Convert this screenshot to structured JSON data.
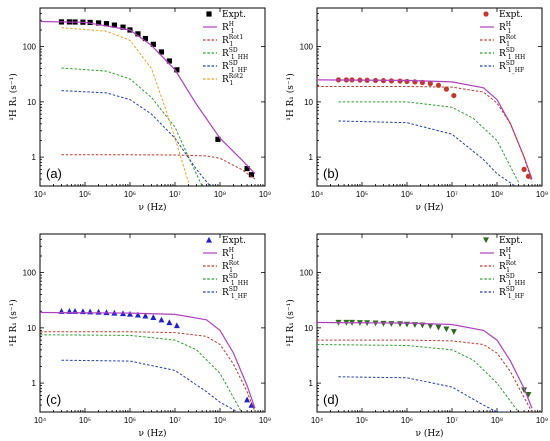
{
  "figure": {
    "panels": [
      "(a)",
      "(b)",
      "(c)",
      "(d)"
    ]
  },
  "chart_data": [
    {
      "type": "line",
      "panel_label": "(a)",
      "xlabel": "ν (Hz)",
      "ylabel": "¹H R₁ (s⁻¹)",
      "x_scale": "log",
      "y_scale": "log",
      "xlim": [
        10000,
        1000000000
      ],
      "ylim": [
        0.3,
        500
      ],
      "x_ticks": [
        "10⁴",
        "10⁵",
        "10⁶",
        "10⁷",
        "10⁸",
        "10⁹"
      ],
      "y_ticks": [
        "1",
        "10",
        "100"
      ],
      "legend_position": "top-right",
      "legend": [
        "Expt.",
        "R1H",
        "R1Rot1",
        "R1SD_HH",
        "R1SD_HF",
        "R1Rot2"
      ],
      "series": [
        {
          "name": "Expt.",
          "kind": "marker",
          "marker": "square",
          "color": "#000000",
          "x": [
            30000,
            45000,
            60000,
            90000,
            130000,
            200000,
            300000,
            450000,
            700000,
            1000000,
            1500000,
            2200000,
            3300000,
            5000000,
            7500000,
            11000000,
            90000000,
            400000000,
            500000000
          ],
          "y": [
            280,
            280,
            279,
            277,
            274,
            268,
            260,
            245,
            225,
            200,
            170,
            140,
            110,
            80,
            55,
            38,
            2.1,
            0.62,
            0.48
          ]
        },
        {
          "name": "R1H",
          "color": "#b040c0",
          "style": "solid",
          "x": [
            10000,
            100000,
            1000000,
            3000000,
            10000000,
            30000000,
            100000000,
            300000000,
            600000000
          ],
          "y": [
            285,
            275,
            200,
            105,
            38,
            9,
            2.2,
            0.9,
            0.5
          ]
        },
        {
          "name": "R1Rot1",
          "color": "#c0392b",
          "style": "dotted",
          "x": [
            30000,
            1000000,
            10000000,
            50000000,
            100000000,
            300000000,
            600000000
          ],
          "y": [
            1.1,
            1.1,
            1.09,
            1.05,
            0.95,
            0.6,
            0.4
          ]
        },
        {
          "name": "R1SD_HH",
          "color": "#2ca02c",
          "style": "dotted",
          "x": [
            30000,
            300000,
            1000000,
            3000000,
            10000000,
            20000000,
            40000000
          ],
          "y": [
            41,
            36,
            26,
            12,
            3.5,
            1.0,
            0.3
          ]
        },
        {
          "name": "R1SD_HF",
          "color": "#1f3fb0",
          "style": "dotted",
          "x": [
            30000,
            300000,
            1000000,
            3000000,
            10000000,
            30000000,
            60000000
          ],
          "y": [
            16,
            14.5,
            11,
            6,
            2.2,
            0.6,
            0.3
          ]
        },
        {
          "name": "R1Rot2",
          "color": "#e8a020",
          "style": "dotted",
          "x": [
            30000,
            300000,
            1000000,
            3000000,
            6000000,
            10000000,
            20000000
          ],
          "y": [
            220,
            190,
            130,
            40,
            8,
            2.2,
            0.35
          ]
        }
      ]
    },
    {
      "type": "line",
      "panel_label": "(b)",
      "xlabel": "ν (Hz)",
      "ylabel": "¹H R₁ (s⁻¹)",
      "x_scale": "log",
      "y_scale": "log",
      "xlim": [
        10000,
        1000000000
      ],
      "ylim": [
        0.3,
        500
      ],
      "x_ticks": [
        "10⁴",
        "10⁵",
        "10⁶",
        "10⁷",
        "10⁸",
        "10⁹"
      ],
      "y_ticks": [
        "1",
        "10",
        "100"
      ],
      "legend_position": "top-right",
      "legend": [
        "Expt.",
        "R1H",
        "R1Rot",
        "R1SD_HH",
        "R1SD_HF"
      ],
      "series": [
        {
          "name": "Expt.",
          "kind": "marker",
          "marker": "circle",
          "color": "#c0392b",
          "x": [
            30000,
            45000,
            60000,
            90000,
            130000,
            200000,
            300000,
            450000,
            700000,
            1000000,
            1500000,
            2200000,
            3300000,
            5000000,
            7500000,
            11000000,
            400000000,
            500000000
          ],
          "y": [
            25,
            25,
            25,
            24.8,
            24.6,
            24.4,
            24.2,
            24,
            23.8,
            23.4,
            23,
            22.4,
            21.5,
            20,
            17,
            13,
            0.6,
            0.45
          ]
        },
        {
          "name": "R1H",
          "color": "#b040c0",
          "style": "solid",
          "x": [
            10000,
            1000000,
            10000000,
            50000000,
            100000000,
            200000000,
            400000000,
            600000000
          ],
          "y": [
            25,
            24.5,
            23,
            18,
            11,
            4,
            1.0,
            0.4
          ]
        },
        {
          "name": "R1Rot",
          "color": "#c0392b",
          "style": "dotted",
          "x": [
            10000,
            1000000,
            10000000,
            50000000,
            100000000,
            200000000,
            400000000,
            600000000
          ],
          "y": [
            19,
            19,
            18.5,
            15,
            9.5,
            4,
            1.0,
            0.35
          ]
        },
        {
          "name": "R1SD_HH",
          "color": "#2ca02c",
          "style": "dotted",
          "x": [
            30000,
            1000000,
            10000000,
            30000000,
            100000000,
            300000000
          ],
          "y": [
            10,
            10,
            8,
            5,
            2,
            0.35
          ]
        },
        {
          "name": "R1SD_HF",
          "color": "#1f3fb0",
          "style": "dotted",
          "x": [
            30000,
            1000000,
            10000000,
            50000000,
            100000000,
            250000000
          ],
          "y": [
            4.5,
            4.2,
            2.6,
            0.9,
            0.5,
            0.3
          ]
        }
      ]
    },
    {
      "type": "line",
      "panel_label": "(c)",
      "xlabel": "ν (Hz)",
      "ylabel": "¹H R₁ (s⁻¹)",
      "x_scale": "log",
      "y_scale": "log",
      "xlim": [
        10000,
        1000000000
      ],
      "ylim": [
        0.3,
        500
      ],
      "x_ticks": [
        "10⁴",
        "10⁵",
        "10⁶",
        "10⁷",
        "10⁸",
        "10⁹"
      ],
      "y_ticks": [
        "1",
        "10",
        "100"
      ],
      "legend_position": "top-right",
      "legend": [
        "Expt.",
        "R1H",
        "R1Rot",
        "R1SD_HH",
        "R1SD_HF"
      ],
      "series": [
        {
          "name": "Expt.",
          "kind": "marker",
          "marker": "triangle-up",
          "color": "#2222cc",
          "x": [
            30000,
            45000,
            60000,
            90000,
            130000,
            200000,
            300000,
            450000,
            700000,
            1000000,
            1500000,
            2200000,
            3300000,
            5000000,
            7500000,
            11000000,
            400000000,
            500000000
          ],
          "y": [
            20,
            20,
            20,
            19.8,
            19.6,
            19.4,
            19,
            18.6,
            18.2,
            17.8,
            17.2,
            16.5,
            15.5,
            14,
            12.5,
            11,
            0.5,
            0.4
          ]
        },
        {
          "name": "R1H",
          "color": "#b040c0",
          "style": "solid",
          "x": [
            10000,
            1000000,
            10000000,
            50000000,
            100000000,
            200000000,
            400000000,
            600000000
          ],
          "y": [
            19,
            18.5,
            17.5,
            14,
            9,
            3.5,
            0.9,
            0.35
          ]
        },
        {
          "name": "R1Rot",
          "color": "#c0392b",
          "style": "dotted",
          "x": [
            10000,
            1000000,
            10000000,
            50000000,
            100000000,
            200000000,
            400000000,
            600000000
          ],
          "y": [
            8.5,
            8.5,
            8.2,
            7,
            5,
            2.2,
            0.7,
            0.3
          ]
        },
        {
          "name": "R1SD_HH",
          "color": "#2ca02c",
          "style": "dotted",
          "x": [
            10000,
            1000000,
            10000000,
            30000000,
            100000000,
            300000000
          ],
          "y": [
            7.5,
            7.3,
            6,
            4,
            1.5,
            0.3
          ]
        },
        {
          "name": "R1SD_HF",
          "color": "#1f3fb0",
          "style": "dotted",
          "x": [
            30000,
            1000000,
            10000000,
            50000000,
            100000000,
            250000000
          ],
          "y": [
            2.6,
            2.5,
            1.7,
            0.7,
            0.45,
            0.3
          ]
        }
      ]
    },
    {
      "type": "line",
      "panel_label": "(d)",
      "xlabel": "ν (Hz)",
      "ylabel": "¹H R₁ (s⁻¹)",
      "x_scale": "log",
      "y_scale": "log",
      "xlim": [
        10000,
        1000000000
      ],
      "ylim": [
        0.3,
        500
      ],
      "x_ticks": [
        "10⁴",
        "10⁵",
        "10⁶",
        "10⁷",
        "10⁸",
        "10⁹"
      ],
      "y_ticks": [
        "1",
        "10",
        "100"
      ],
      "legend_position": "top-right",
      "legend": [
        "Expt.",
        "R1H",
        "R1Rot",
        "R1SD_HH",
        "R1SD_HF"
      ],
      "series": [
        {
          "name": "Expt.",
          "kind": "marker",
          "marker": "triangle-down",
          "color": "#2e6b1e",
          "x": [
            30000,
            45000,
            60000,
            90000,
            130000,
            200000,
            300000,
            450000,
            700000,
            1000000,
            1500000,
            2200000,
            3300000,
            5000000,
            7500000,
            11000000,
            400000000,
            500000000
          ],
          "y": [
            12.5,
            12.5,
            12.5,
            12.4,
            12.3,
            12.2,
            12,
            11.9,
            11.8,
            11.6,
            11.4,
            11.2,
            10.8,
            10.2,
            9.5,
            8.5,
            0.75,
            0.62
          ]
        },
        {
          "name": "R1H",
          "color": "#b040c0",
          "style": "solid",
          "x": [
            10000,
            1000000,
            10000000,
            50000000,
            100000000,
            200000000,
            400000000,
            600000000
          ],
          "y": [
            12.5,
            12.2,
            11.5,
            9,
            6,
            2.5,
            0.8,
            0.35
          ]
        },
        {
          "name": "R1Rot",
          "color": "#c0392b",
          "style": "dotted",
          "x": [
            10000,
            1000000,
            10000000,
            50000000,
            100000000,
            200000000,
            400000000,
            600000000
          ],
          "y": [
            6,
            6,
            5.8,
            5,
            3.5,
            1.6,
            0.55,
            0.3
          ]
        },
        {
          "name": "R1SD_HH",
          "color": "#2ca02c",
          "style": "dotted",
          "x": [
            10000,
            1000000,
            10000000,
            30000000,
            100000000,
            300000000
          ],
          "y": [
            5,
            4.8,
            4,
            2.6,
            1.0,
            0.3
          ]
        },
        {
          "name": "R1SD_HF",
          "color": "#1f3fb0",
          "style": "dotted",
          "x": [
            30000,
            1000000,
            10000000,
            50000000,
            100000000,
            200000000
          ],
          "y": [
            1.3,
            1.25,
            0.85,
            0.4,
            0.3,
            0.3
          ]
        }
      ]
    }
  ]
}
